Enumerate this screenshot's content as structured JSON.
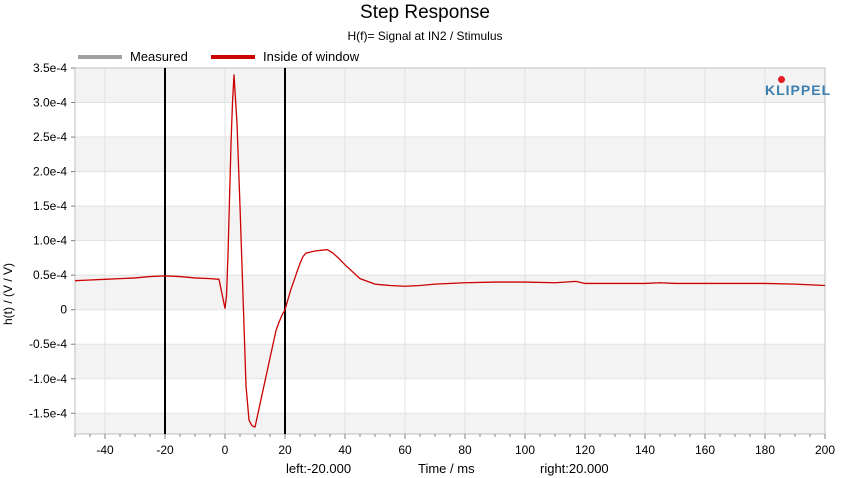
{
  "chart_data": {
    "type": "line",
    "title": "Step Response",
    "subtitle": "H(f)= Signal at IN2 / Stimulus",
    "xlabel": "Time / ms",
    "ylabel": "h(t) / (V / V)",
    "xlim": [
      -50,
      200
    ],
    "ylim": [
      -0.00018,
      0.00035
    ],
    "x_ticks": [
      -40,
      -20,
      0,
      20,
      40,
      60,
      80,
      100,
      120,
      140,
      160,
      180,
      200
    ],
    "x_tick_labels": [
      "-40",
      "-20",
      "0",
      "20",
      "40",
      "60",
      "80",
      "100",
      "120",
      "140",
      "160",
      "180",
      "200"
    ],
    "y_ticks": [
      0.00035,
      0.0003,
      0.00025,
      0.0002,
      0.00015,
      0.0001,
      5e-05,
      0,
      -5e-05,
      -0.0001,
      -0.00015
    ],
    "y_tick_labels": [
      "3.5e-4",
      "3.0e-4",
      "2.5e-4",
      "2.0e-4",
      "1.5e-4",
      "1.0e-4",
      "0.5e-4",
      "0",
      "-0.5e-4",
      "-1.0e-4",
      "-1.5e-4"
    ],
    "grid": true,
    "legend_position": "top-left",
    "series": [
      {
        "name": "Measured",
        "color": "#a0a0a0",
        "x": [],
        "y": []
      },
      {
        "name": "Inside of window",
        "color": "#cc0000",
        "x": [
          -50,
          -45,
          -40,
          -35,
          -30,
          -25,
          -20,
          -15,
          -10,
          -5,
          -2,
          0,
          0.5,
          1,
          1.5,
          2,
          2.5,
          3,
          4,
          5,
          6,
          7,
          8,
          9,
          10,
          11,
          12,
          13,
          14,
          15,
          16,
          17,
          18,
          19,
          20,
          21,
          22,
          23,
          24,
          25,
          26,
          27,
          28,
          30,
          32,
          34,
          36,
          38,
          40,
          45,
          50,
          55,
          60,
          65,
          70,
          80,
          90,
          100,
          110,
          117,
          120,
          130,
          140,
          145,
          150,
          160,
          170,
          180,
          190,
          200
        ],
        "y": [
          4.2e-05,
          4.3e-05,
          4.4e-05,
          4.5e-05,
          4.6e-05,
          4.8e-05,
          4.9e-05,
          4.8e-05,
          4.6e-05,
          4.5e-05,
          4.4e-05,
          2e-06,
          2e-05,
          8e-05,
          0.00016,
          0.00024,
          0.0003,
          0.00034,
          0.00027,
          0.00015,
          2e-05,
          -0.00011,
          -0.00016,
          -0.000168,
          -0.00017,
          -0.00015,
          -0.00013,
          -0.00011,
          -9e-05,
          -7e-05,
          -5e-05,
          -3e-05,
          -1.8e-05,
          -8e-06,
          0.0,
          1.5e-05,
          3e-05,
          4.2e-05,
          5.5e-05,
          6.7e-05,
          7.7e-05,
          8.2e-05,
          8.3e-05,
          8.5e-05,
          8.6e-05,
          8.7e-05,
          8.2e-05,
          7.4e-05,
          6.5e-05,
          4.5e-05,
          3.7e-05,
          3.5e-05,
          3.4e-05,
          3.5e-05,
          3.7e-05,
          3.9e-05,
          4e-05,
          4e-05,
          3.9e-05,
          4.1e-05,
          3.8e-05,
          3.8e-05,
          3.8e-05,
          3.9e-05,
          3.8e-05,
          3.8e-05,
          3.8e-05,
          3.8e-05,
          3.7e-05,
          3.5e-05
        ]
      }
    ],
    "window_markers": [
      {
        "name": "left",
        "x": -20
      },
      {
        "name": "right",
        "x": 20
      }
    ]
  },
  "bottom_labels": {
    "left": "left:-20.000",
    "center": "Time / ms",
    "right": "right:20.000"
  },
  "logo_text": "KLIPPEL"
}
